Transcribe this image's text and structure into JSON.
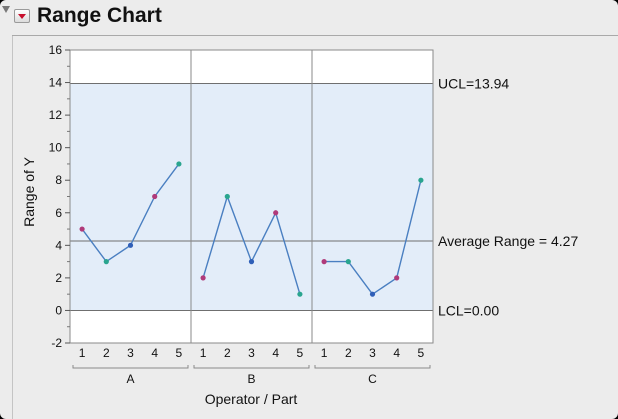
{
  "report": {
    "title": "Range Chart"
  },
  "chart_data": {
    "type": "line",
    "title": "Range Chart",
    "xlabel": "Operator / Part",
    "ylabel": "Range of Y",
    "ylim": [
      -2,
      16
    ],
    "yticks": [
      -2,
      0,
      2,
      4,
      6,
      8,
      10,
      12,
      14,
      16
    ],
    "grid": false,
    "groups": [
      {
        "label": "A",
        "x": [
          "1",
          "2",
          "3",
          "4",
          "5"
        ],
        "y": [
          5,
          3,
          4,
          7,
          9
        ],
        "point_colors": [
          "#b03a7a",
          "#2aa58f",
          "#2f5fb8",
          "#b03a7a",
          "#2aa58f"
        ]
      },
      {
        "label": "B",
        "x": [
          "1",
          "2",
          "3",
          "4",
          "5"
        ],
        "y": [
          2,
          7,
          3,
          6,
          1
        ],
        "point_colors": [
          "#b03a7a",
          "#2aa58f",
          "#2f5fb8",
          "#b03a7a",
          "#2aa58f"
        ]
      },
      {
        "label": "C",
        "x": [
          "1",
          "2",
          "3",
          "4",
          "5"
        ],
        "y": [
          3,
          3,
          1,
          2,
          8
        ],
        "point_colors": [
          "#b03a7a",
          "#2aa58f",
          "#2f5fb8",
          "#b03a7a",
          "#2aa58f"
        ]
      }
    ],
    "limits": [
      {
        "name": "UCL",
        "value": 13.94,
        "label": "UCL=13.94"
      },
      {
        "name": "Average Range",
        "value": 4.27,
        "label": "Average Range = 4.27"
      },
      {
        "name": "LCL",
        "value": 0.0,
        "label": "LCL=0.00"
      }
    ],
    "colors": {
      "line": "#4a7fc1",
      "band": "#e3edf9",
      "limit_line": "#6f6f6f"
    }
  }
}
